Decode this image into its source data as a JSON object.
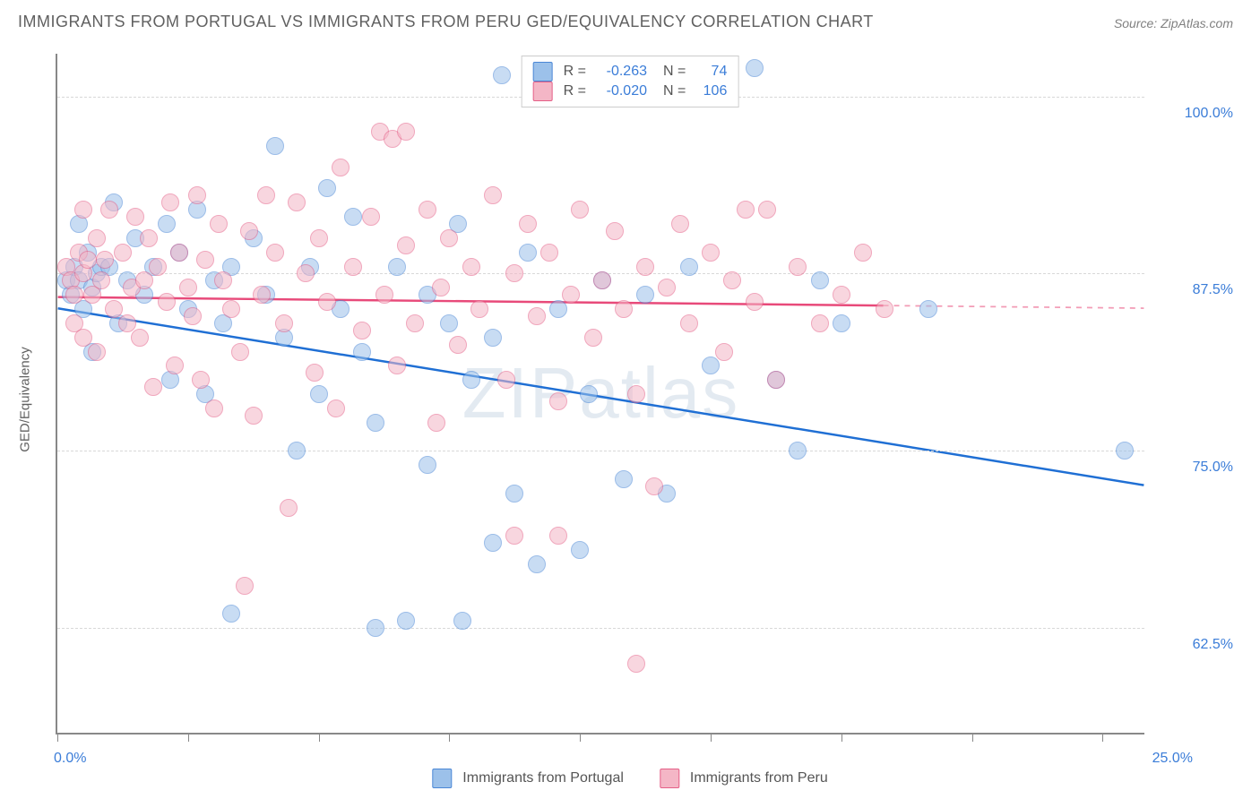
{
  "title": "IMMIGRANTS FROM PORTUGAL VS IMMIGRANTS FROM PERU GED/EQUIVALENCY CORRELATION CHART",
  "source": "Source: ZipAtlas.com",
  "watermark": "ZIPatlas",
  "ylabel": "GED/Equivalency",
  "chart": {
    "type": "scatter",
    "xlim": [
      0,
      25
    ],
    "ylim": [
      55,
      103
    ],
    "xtick_labels": {
      "left": "0.0%",
      "right": "25.0%"
    },
    "xtick_positions_pct": [
      0,
      12,
      24,
      36,
      48,
      60,
      72,
      84,
      96
    ],
    "ytick_labels": [
      "100.0%",
      "87.5%",
      "75.0%",
      "62.5%"
    ],
    "ytick_values": [
      100,
      87.5,
      75,
      62.5
    ],
    "grid_color": "#d8d8d8",
    "background_color": "#ffffff",
    "axis_color": "#888888",
    "marker_radius": 10,
    "marker_opacity": 0.55,
    "series": [
      {
        "key": "portugal",
        "label": "Immigrants from Portugal",
        "fill": "#9cc1ea",
        "stroke": "#4a87d6",
        "line_color": "#1f6fd4",
        "line_width": 2.5,
        "R": "-0.263",
        "N": "74",
        "trend": {
          "x1": 0,
          "y1": 85,
          "x2": 25,
          "y2": 72.5
        },
        "points": [
          [
            0.2,
            87
          ],
          [
            0.3,
            86
          ],
          [
            0.4,
            88
          ],
          [
            0.5,
            87
          ],
          [
            0.6,
            85
          ],
          [
            0.7,
            89
          ],
          [
            0.8,
            86.5
          ],
          [
            0.9,
            87.5
          ],
          [
            1.0,
            88
          ],
          [
            0.5,
            91
          ],
          [
            0.8,
            82
          ],
          [
            1.2,
            88
          ],
          [
            1.4,
            84
          ],
          [
            1.6,
            87
          ],
          [
            1.8,
            90
          ],
          [
            1.3,
            92.5
          ],
          [
            2.0,
            86
          ],
          [
            2.2,
            88
          ],
          [
            2.5,
            91
          ],
          [
            2.6,
            80
          ],
          [
            2.8,
            89
          ],
          [
            3.0,
            85
          ],
          [
            3.2,
            92
          ],
          [
            3.4,
            79
          ],
          [
            3.6,
            87
          ],
          [
            3.8,
            84
          ],
          [
            4.0,
            63.5
          ],
          [
            4.0,
            88
          ],
          [
            4.5,
            90
          ],
          [
            4.8,
            86
          ],
          [
            5.0,
            96.5
          ],
          [
            5.2,
            83
          ],
          [
            5.5,
            75
          ],
          [
            5.8,
            88
          ],
          [
            6.0,
            79
          ],
          [
            6.2,
            93.5
          ],
          [
            6.5,
            85
          ],
          [
            6.8,
            91.5
          ],
          [
            7.0,
            82
          ],
          [
            7.3,
            77
          ],
          [
            7.3,
            62.5
          ],
          [
            7.8,
            88
          ],
          [
            8.0,
            63
          ],
          [
            8.5,
            74
          ],
          [
            8.5,
            86
          ],
          [
            9.0,
            84
          ],
          [
            9.2,
            91
          ],
          [
            9.5,
            80
          ],
          [
            9.3,
            63
          ],
          [
            10.0,
            68.5
          ],
          [
            10.0,
            83
          ],
          [
            10.2,
            101.5
          ],
          [
            10.5,
            72
          ],
          [
            10.8,
            89
          ],
          [
            11.0,
            67
          ],
          [
            11.5,
            85
          ],
          [
            12.0,
            68
          ],
          [
            12.2,
            79
          ],
          [
            12.5,
            87
          ],
          [
            13.0,
            73
          ],
          [
            13.5,
            86
          ],
          [
            14.0,
            72
          ],
          [
            14.5,
            88
          ],
          [
            15.0,
            81
          ],
          [
            16.0,
            102
          ],
          [
            16.5,
            80
          ],
          [
            17.0,
            75
          ],
          [
            17.5,
            87
          ],
          [
            18.0,
            84
          ],
          [
            20.0,
            85
          ],
          [
            24.5,
            75
          ]
        ]
      },
      {
        "key": "peru",
        "label": "Immigrants from Peru",
        "fill": "#f4b6c6",
        "stroke": "#e55f87",
        "line_color": "#e84a7a",
        "line_width": 2.5,
        "R": "-0.020",
        "N": "106",
        "trend": {
          "x1": 0,
          "y1": 85.8,
          "x2": 19,
          "y2": 85.2,
          "dash_to_x": 25
        },
        "points": [
          [
            0.2,
            88
          ],
          [
            0.3,
            87
          ],
          [
            0.4,
            86
          ],
          [
            0.5,
            89
          ],
          [
            0.6,
            87.5
          ],
          [
            0.7,
            88.5
          ],
          [
            0.6,
            92
          ],
          [
            0.8,
            86
          ],
          [
            0.9,
            90
          ],
          [
            1.0,
            87
          ],
          [
            0.4,
            84
          ],
          [
            0.6,
            83
          ],
          [
            0.9,
            82
          ],
          [
            1.1,
            88.5
          ],
          [
            1.2,
            92
          ],
          [
            1.3,
            85
          ],
          [
            1.5,
            89
          ],
          [
            1.6,
            84
          ],
          [
            1.7,
            86.5
          ],
          [
            1.8,
            91.5
          ],
          [
            1.9,
            83
          ],
          [
            2.0,
            87
          ],
          [
            2.1,
            90
          ],
          [
            2.2,
            79.5
          ],
          [
            2.3,
            88
          ],
          [
            2.5,
            85.5
          ],
          [
            2.6,
            92.5
          ],
          [
            2.7,
            81
          ],
          [
            2.8,
            89
          ],
          [
            3.0,
            86.5
          ],
          [
            3.1,
            84.5
          ],
          [
            3.2,
            93
          ],
          [
            3.3,
            80
          ],
          [
            3.4,
            88.5
          ],
          [
            3.7,
            91
          ],
          [
            3.6,
            78
          ],
          [
            3.8,
            87
          ],
          [
            4.3,
            65.5
          ],
          [
            4.0,
            85
          ],
          [
            4.2,
            82
          ],
          [
            4.4,
            90.5
          ],
          [
            4.5,
            77.5
          ],
          [
            4.8,
            93
          ],
          [
            4.7,
            86
          ],
          [
            5.0,
            89
          ],
          [
            5.2,
            84
          ],
          [
            5.5,
            92.5
          ],
          [
            5.3,
            71
          ],
          [
            5.7,
            87.5
          ],
          [
            5.9,
            80.5
          ],
          [
            6.0,
            90
          ],
          [
            6.2,
            85.5
          ],
          [
            6.5,
            95
          ],
          [
            6.4,
            78
          ],
          [
            6.8,
            88
          ],
          [
            7.0,
            83.5
          ],
          [
            7.4,
            97.5
          ],
          [
            7.2,
            91.5
          ],
          [
            7.5,
            86
          ],
          [
            7.7,
            97
          ],
          [
            7.8,
            81
          ],
          [
            8.0,
            89.5
          ],
          [
            8.0,
            97.5
          ],
          [
            8.2,
            84
          ],
          [
            8.5,
            92
          ],
          [
            8.7,
            77
          ],
          [
            8.8,
            86.5
          ],
          [
            9.0,
            90
          ],
          [
            9.2,
            82.5
          ],
          [
            9.5,
            88
          ],
          [
            9.7,
            85
          ],
          [
            10.0,
            93
          ],
          [
            10.3,
            80
          ],
          [
            10.5,
            87.5
          ],
          [
            10.5,
            69
          ],
          [
            10.8,
            91
          ],
          [
            11.0,
            84.5
          ],
          [
            11.3,
            89
          ],
          [
            11.5,
            78.5
          ],
          [
            11.8,
            86
          ],
          [
            11.5,
            69
          ],
          [
            12.0,
            92
          ],
          [
            12.3,
            83
          ],
          [
            12.5,
            87
          ],
          [
            12.8,
            90.5
          ],
          [
            13.0,
            85
          ],
          [
            13.3,
            79
          ],
          [
            13.5,
            88
          ],
          [
            13.7,
            72.5
          ],
          [
            14.0,
            86.5
          ],
          [
            14.3,
            91
          ],
          [
            14.5,
            84
          ],
          [
            15.0,
            89
          ],
          [
            15.3,
            82
          ],
          [
            15.5,
            87
          ],
          [
            16.0,
            85.5
          ],
          [
            16.3,
            92
          ],
          [
            16.5,
            80
          ],
          [
            13.3,
            60
          ],
          [
            17.0,
            88
          ],
          [
            17.5,
            84
          ],
          [
            18.0,
            86
          ],
          [
            18.5,
            89
          ],
          [
            19.0,
            85
          ],
          [
            15.8,
            92
          ]
        ]
      }
    ]
  }
}
